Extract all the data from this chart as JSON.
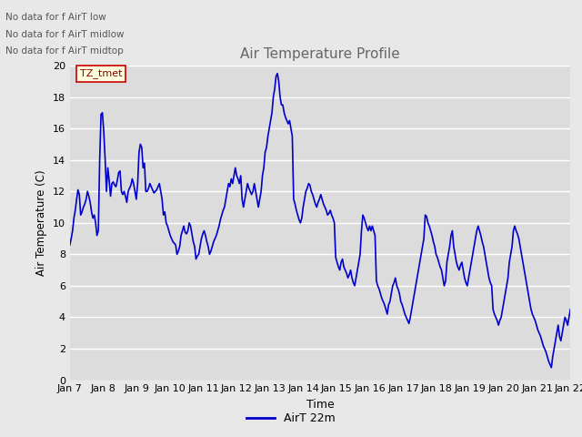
{
  "title": "Air Temperature Profile",
  "xlabel": "Time",
  "ylabel": "Air Temperature (C)",
  "line_color": "#0000CC",
  "line_width": 1.2,
  "fig_bg_color": "#E8E8E8",
  "plot_bg_color": "#DCDCDC",
  "ylim": [
    0,
    20
  ],
  "yticks": [
    0,
    2,
    4,
    6,
    8,
    10,
    12,
    14,
    16,
    18,
    20
  ],
  "legend_label": "AirT 22m",
  "legend_text_no_data": [
    "No data for f AirT low",
    "No data for f AirT midlow",
    "No data for f AirT midtop"
  ],
  "legend_box_label": "TZ_tmet",
  "x_tick_labels": [
    "Jan 7",
    "Jan 8",
    "Jan 9",
    "Jan 10",
    "Jan 11",
    "Jan 12",
    "Jan 13",
    "Jan 14",
    "Jan 15",
    "Jan 16",
    "Jan 17",
    "Jan 18",
    "Jan 19",
    "Jan 20",
    "Jan 21",
    "Jan 22"
  ],
  "y_values": [
    8.6,
    9.0,
    9.5,
    10.3,
    10.8,
    11.5,
    12.1,
    11.8,
    10.5,
    10.7,
    11.0,
    11.2,
    11.5,
    12.0,
    11.7,
    11.3,
    10.7,
    10.3,
    10.5,
    10.0,
    9.2,
    9.5,
    14.0,
    16.9,
    17.0,
    15.8,
    14.1,
    12.0,
    13.5,
    12.7,
    11.7,
    12.5,
    12.6,
    12.4,
    12.3,
    12.7,
    13.2,
    13.3,
    12.0,
    11.8,
    12.0,
    11.7,
    11.3,
    12.0,
    12.2,
    12.4,
    12.8,
    12.5,
    12.0,
    11.5,
    12.5,
    14.5,
    15.0,
    14.8,
    13.5,
    13.8,
    12.0,
    12.0,
    12.2,
    12.5,
    12.3,
    12.1,
    11.9,
    12.0,
    12.1,
    12.3,
    12.5,
    12.0,
    11.5,
    10.5,
    10.7,
    10.0,
    9.8,
    9.5,
    9.2,
    9.0,
    8.8,
    8.7,
    8.6,
    8.0,
    8.2,
    8.5,
    9.2,
    9.5,
    9.8,
    9.4,
    9.3,
    9.5,
    10.0,
    9.8,
    9.3,
    8.8,
    8.5,
    7.7,
    7.9,
    8.0,
    8.5,
    9.0,
    9.3,
    9.5,
    9.2,
    8.8,
    8.5,
    8.0,
    8.2,
    8.5,
    8.8,
    9.0,
    9.2,
    9.5,
    9.8,
    10.2,
    10.5,
    10.8,
    11.0,
    11.5,
    12.0,
    12.5,
    12.3,
    12.8,
    12.5,
    13.0,
    13.5,
    13.0,
    12.8,
    12.5,
    13.0,
    11.5,
    11.0,
    11.5,
    12.0,
    12.5,
    12.2,
    12.0,
    11.8,
    12.0,
    12.5,
    12.0,
    11.5,
    11.0,
    11.5,
    12.0,
    13.0,
    13.5,
    14.5,
    14.8,
    15.5,
    16.0,
    16.5,
    17.0,
    18.0,
    18.5,
    19.3,
    19.5,
    19.0,
    18.0,
    17.5,
    17.5,
    17.0,
    16.7,
    16.5,
    16.3,
    16.5,
    16.0,
    15.5,
    11.5,
    11.2,
    10.8,
    10.5,
    10.2,
    10.0,
    10.3,
    11.0,
    11.5,
    12.0,
    12.2,
    12.5,
    12.4,
    12.0,
    11.8,
    11.5,
    11.2,
    11.0,
    11.3,
    11.5,
    11.8,
    11.5,
    11.2,
    11.0,
    10.8,
    10.5,
    10.6,
    10.8,
    10.5,
    10.3,
    10.0,
    7.8,
    7.5,
    7.2,
    7.0,
    7.5,
    7.7,
    7.2,
    7.0,
    6.8,
    6.5,
    6.7,
    7.0,
    6.5,
    6.2,
    6.0,
    6.5,
    7.0,
    7.5,
    8.0,
    9.5,
    10.5,
    10.3,
    10.0,
    9.7,
    9.5,
    9.8,
    9.5,
    9.8,
    9.5,
    9.2,
    6.3,
    6.0,
    5.8,
    5.5,
    5.2,
    5.0,
    4.8,
    4.5,
    4.2,
    4.8,
    5.0,
    5.5,
    6.0,
    6.2,
    6.5,
    6.0,
    5.8,
    5.5,
    5.0,
    4.8,
    4.5,
    4.2,
    4.0,
    3.8,
    3.6,
    4.0,
    4.5,
    5.0,
    5.5,
    6.0,
    6.5,
    7.0,
    7.5,
    8.0,
    8.5,
    9.0,
    10.5,
    10.4,
    10.0,
    9.8,
    9.5,
    9.2,
    8.8,
    8.5,
    8.0,
    7.8,
    7.5,
    7.2,
    7.0,
    6.5,
    6.0,
    6.3,
    7.5,
    8.0,
    8.5,
    9.2,
    9.5,
    8.5,
    8.0,
    7.5,
    7.2,
    7.0,
    7.3,
    7.5,
    7.0,
    6.5,
    6.2,
    6.0,
    6.5,
    7.0,
    7.5,
    8.0,
    8.5,
    9.0,
    9.5,
    9.8,
    9.5,
    9.2,
    8.8,
    8.5,
    8.0,
    7.5,
    7.0,
    6.5,
    6.2,
    6.0,
    4.5,
    4.2,
    4.0,
    3.8,
    3.5,
    3.8,
    4.0,
    4.5,
    5.0,
    5.5,
    6.0,
    6.5,
    7.5,
    8.0,
    8.5,
    9.5,
    9.8,
    9.5,
    9.3,
    9.0,
    8.5,
    8.0,
    7.5,
    7.0,
    6.5,
    6.0,
    5.5,
    5.0,
    4.5,
    4.2,
    4.0,
    3.8,
    3.5,
    3.2,
    3.0,
    2.8,
    2.5,
    2.2,
    2.0,
    1.8,
    1.5,
    1.2,
    1.0,
    0.8,
    1.5,
    2.0,
    2.5,
    3.0,
    3.5,
    2.8,
    2.5,
    3.0,
    3.5,
    4.0,
    3.8,
    3.5,
    4.0,
    4.5
  ]
}
